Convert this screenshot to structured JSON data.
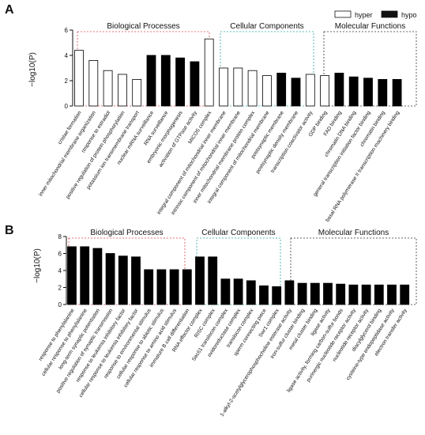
{
  "chart_data": [
    {
      "panel": "A",
      "type": "bar",
      "ylabel": "−log10(P)",
      "ylim": [
        0,
        6
      ],
      "yticks": [
        0,
        2,
        4,
        6
      ],
      "groups": [
        {
          "title": "Biological Processes",
          "color": "#e0474c"
        },
        {
          "title": "Cellular Components",
          "color": "#26a6a1"
        },
        {
          "title": "Molecular Functions",
          "color": "#333333"
        }
      ],
      "series": [
        {
          "name": "hyper"
        },
        {
          "name": "hypo"
        }
      ],
      "categories": [
        "cristae formation",
        "inner mitochondrial membrane organization",
        "response to estradiol",
        "positive regulation of protein phosphorylation",
        "potassium ion transmembrane transport",
        "nuclear mRNA surveillance",
        "RNA surveillance",
        "embryonic morphogenesis",
        "activation of GTPase activity",
        "MICOS complex",
        "integral component of mitochondrial inner membrane",
        "intrinsic component of mitochondrial inner membrane",
        "inner mitochondrial membrane protein complex",
        "integral component of mitochondrial membrane",
        "postsynaptic membrane",
        "postsynaptic density membrane",
        "transcription coactivator activity",
        "GDP binding",
        "FAD binding",
        "chromatin DNA binding",
        "general transcription initiation factor binding",
        "chromatin binding",
        "basal RNA polymerase II transcription machinery binding"
      ],
      "group_index": [
        0,
        0,
        0,
        0,
        0,
        0,
        0,
        0,
        0,
        1,
        1,
        1,
        1,
        1,
        1,
        1,
        2,
        2,
        2,
        2,
        2,
        2,
        2
      ],
      "series_index": [
        0,
        0,
        0,
        0,
        0,
        1,
        1,
        1,
        1,
        0,
        0,
        0,
        0,
        0,
        1,
        1,
        0,
        0,
        1,
        1,
        1,
        1,
        1
      ],
      "values": [
        4.4,
        3.6,
        2.8,
        2.5,
        2.1,
        4.0,
        4.0,
        3.8,
        3.5,
        5.3,
        3.0,
        3.0,
        2.8,
        2.4,
        2.6,
        2.2,
        2.5,
        2.4,
        2.6,
        2.3,
        2.2,
        2.1,
        2.1
      ]
    },
    {
      "panel": "B",
      "type": "bar",
      "ylabel": "−log10(P)",
      "ylim": [
        0,
        8
      ],
      "yticks": [
        0,
        2,
        4,
        6,
        8
      ],
      "groups": [
        {
          "title": "Biological Processes",
          "color": "#e0474c"
        },
        {
          "title": "Cellular Components",
          "color": "#26a6a1"
        },
        {
          "title": "Molecular Functions",
          "color": "#333333"
        }
      ],
      "categories": [
        "response to phenylalanine",
        "cellular response to phenylalanine",
        "long-term synaptic potentiation",
        "positive regulation of synaptic transmission",
        "response to leukemia inhibitory factor",
        "cellular response to leukemia inhibitory factor",
        "response to environmental stimulus",
        "cellular response to abiotic stimulus",
        "cellular response to amino acid stimulus",
        "immature B cell differentiation",
        "RNA effector complex",
        "RISC complex",
        "Sec61 translocon complex",
        "oxidoreductase complex",
        "translocon complex",
        "sperm connecting piece",
        "Swr1 complex",
        "1-alkyl-2-acetylglycerophosphocholine esterase activity",
        "iron-sulfur cluster binding",
        "metal cluster binding",
        "ligase activity",
        "ligase activity, forming carbon-sulfur bonds",
        "purinergic nucleotide receptor activity",
        "nucleotide receptor activity",
        "diacylglycerol binding",
        "cysteine-type endopeptidase activity",
        "electron transfer activity"
      ],
      "group_index": [
        0,
        0,
        0,
        0,
        0,
        0,
        0,
        0,
        0,
        0,
        1,
        1,
        1,
        1,
        1,
        1,
        1,
        2,
        2,
        2,
        2,
        2,
        2,
        2,
        2,
        2,
        2
      ],
      "values": [
        6.8,
        6.8,
        6.6,
        6.0,
        5.7,
        5.6,
        4.1,
        4.1,
        4.1,
        4.1,
        5.6,
        5.6,
        3.0,
        3.0,
        2.8,
        2.2,
        2.1,
        2.8,
        2.5,
        2.5,
        2.5,
        2.4,
        2.3,
        2.3,
        2.3,
        2.3,
        2.3
      ]
    }
  ]
}
